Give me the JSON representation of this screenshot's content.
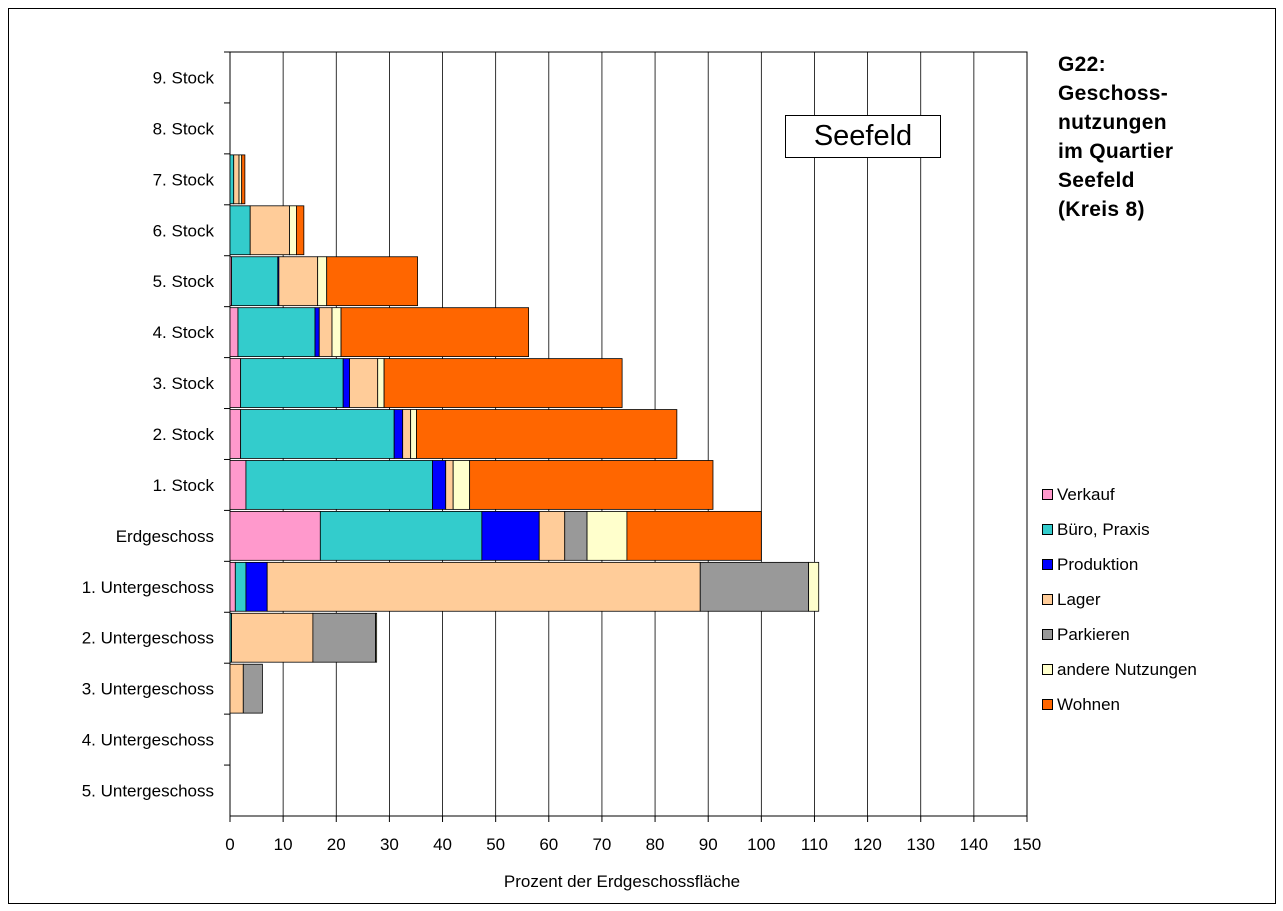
{
  "chart_data": {
    "type": "bar",
    "orientation": "horizontal",
    "stacked": true,
    "title": "G22:\nGeschoss-\nnutzungen\nim Quartier\nSeefeld\n(Kreis 8)",
    "annotation": "Seefeld",
    "xlabel": "Prozent der Erdgeschossfläche",
    "ylabel": "",
    "xlim": [
      0,
      150
    ],
    "xticks": [
      0,
      10,
      20,
      30,
      40,
      50,
      60,
      70,
      80,
      90,
      100,
      110,
      120,
      130,
      140,
      150
    ],
    "grid": "vertical",
    "legend_position": "right",
    "categories": [
      "9. Stock",
      "8. Stock",
      "7. Stock",
      "6. Stock",
      "5. Stock",
      "4. Stock",
      "3. Stock",
      "2. Stock",
      "1. Stock",
      "Erdgeschoss",
      "1. Untergeschoss",
      "2. Untergeschoss",
      "3. Untergeschoss",
      "4. Untergeschoss",
      "5. Untergeschoss"
    ],
    "series": [
      {
        "name": "Verkauf",
        "color": "#FF99CC",
        "values": [
          0,
          0,
          0,
          0,
          0.3,
          1.5,
          2,
          2,
          3,
          17,
          1,
          0,
          0,
          0,
          0
        ]
      },
      {
        "name": "Büro, Praxis",
        "color": "#33CCCC",
        "values": [
          0,
          0,
          0.7,
          3.8,
          8.7,
          14.5,
          19.3,
          28.9,
          35.1,
          30.4,
          2,
          0.3,
          0,
          0,
          0
        ]
      },
      {
        "name": "Produktion",
        "color": "#0000FF",
        "values": [
          0,
          0,
          0,
          0,
          0.2,
          0.8,
          1.2,
          1.6,
          2.5,
          10.8,
          4,
          0,
          0,
          0,
          0
        ]
      },
      {
        "name": "Lager",
        "color": "#FFCC99",
        "values": [
          0,
          0,
          1,
          7.4,
          7.3,
          2.4,
          5.3,
          1.5,
          1.4,
          4.8,
          81.5,
          15.3,
          2.5,
          0,
          0
        ]
      },
      {
        "name": "Parkieren",
        "color": "#999999",
        "values": [
          0,
          0,
          0,
          0,
          0,
          0,
          0,
          0,
          0,
          4.2,
          20.4,
          11.8,
          3.6,
          0,
          0
        ]
      },
      {
        "name": "andere Nutzungen",
        "color": "#FFFFCC",
        "values": [
          0,
          0,
          0.5,
          1.3,
          1.7,
          1.7,
          1.2,
          1.1,
          3.1,
          7.5,
          1.9,
          0.2,
          0,
          0,
          0
        ]
      },
      {
        "name": "Wohnen",
        "color": "#FF6600",
        "values": [
          0,
          0,
          0.6,
          1.4,
          17.1,
          35.3,
          44.8,
          49,
          45.8,
          25.3,
          0,
          0,
          0,
          0,
          0
        ]
      }
    ]
  }
}
